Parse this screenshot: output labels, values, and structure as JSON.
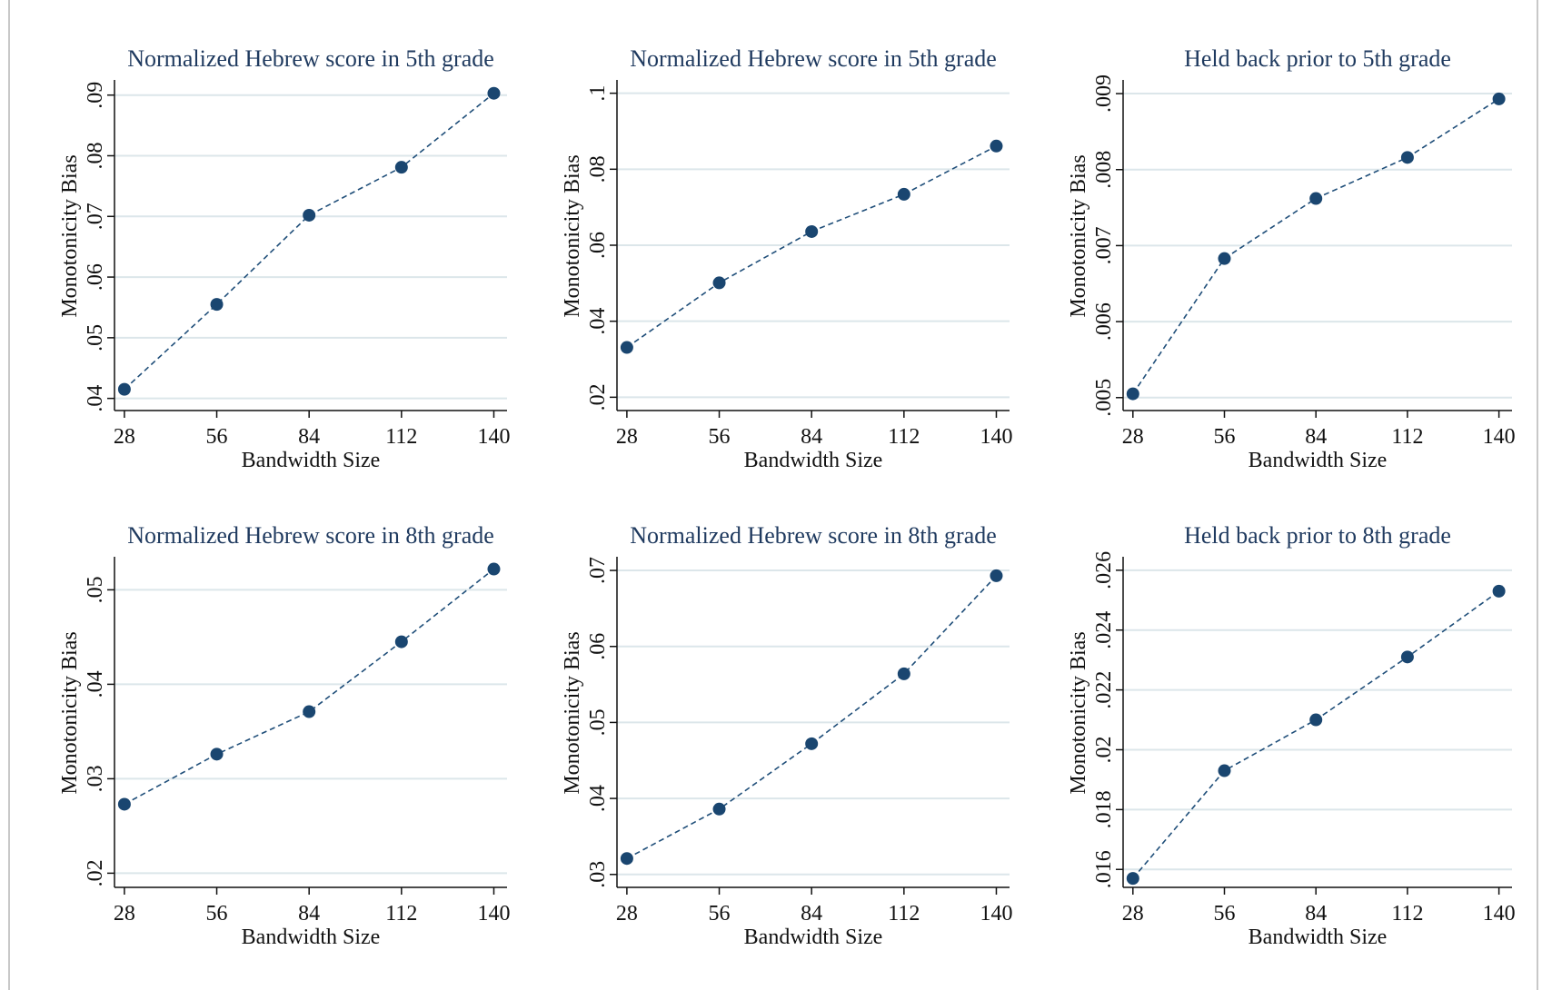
{
  "chart_data": [
    {
      "type": "line",
      "title": "Normalized Hebrew score in 5th grade",
      "xlabel": "Bandwidth Size",
      "ylabel": "Monotonicity Bias",
      "x": [
        28,
        56,
        84,
        112,
        140
      ],
      "xticks": [
        "28",
        "56",
        "84",
        "112",
        "140"
      ],
      "xlim": [
        25,
        144
      ],
      "yticks": [
        0.04,
        0.05,
        0.06,
        0.07,
        0.08,
        0.09
      ],
      "yticklabels": [
        ".04",
        ".05",
        ".06",
        ".07",
        ".08",
        ".09"
      ],
      "ylim": [
        0.038,
        0.0925
      ],
      "grid": true,
      "series": [
        {
          "values": [
            0.0415,
            0.0555,
            0.0702,
            0.0781,
            0.0903
          ]
        }
      ]
    },
    {
      "type": "line",
      "title": "Normalized Hebrew score in 5th grade",
      "xlabel": "Bandwidth Size",
      "ylabel": "Monotonicity Bias",
      "x": [
        28,
        56,
        84,
        112,
        140
      ],
      "xticks": [
        "28",
        "56",
        "84",
        "112",
        "140"
      ],
      "xlim": [
        25,
        144
      ],
      "yticks": [
        0.02,
        0.04,
        0.06,
        0.08,
        0.1
      ],
      "yticklabels": [
        ".02",
        ".04",
        ".06",
        ".08",
        ".1"
      ],
      "ylim": [
        0.0165,
        0.1035
      ],
      "grid": true,
      "series": [
        {
          "values": [
            0.0331,
            0.0501,
            0.0636,
            0.0734,
            0.0861
          ]
        }
      ]
    },
    {
      "type": "line",
      "title": "Held back prior to 5th grade",
      "xlabel": "Bandwidth Size",
      "ylabel": "Monotonicity Bias",
      "x": [
        28,
        56,
        84,
        112,
        140
      ],
      "xticks": [
        "28",
        "56",
        "84",
        "112",
        "140"
      ],
      "xlim": [
        25,
        144
      ],
      "yticks": [
        0.005,
        0.006,
        0.007,
        0.008,
        0.009
      ],
      "yticklabels": [
        ".005",
        ".006",
        ".007",
        ".008",
        ".009"
      ],
      "ylim": [
        0.00483,
        0.00918
      ],
      "grid": true,
      "series": [
        {
          "values": [
            0.00505,
            0.00683,
            0.00762,
            0.00816,
            0.00893
          ]
        }
      ]
    },
    {
      "type": "line",
      "title": "Normalized Hebrew score in 8th grade",
      "xlabel": "Bandwidth Size",
      "ylabel": "Monotonicity Bias",
      "x": [
        28,
        56,
        84,
        112,
        140
      ],
      "xticks": [
        "28",
        "56",
        "84",
        "112",
        "140"
      ],
      "xlim": [
        25,
        144
      ],
      "yticks": [
        0.02,
        0.03,
        0.04,
        0.05
      ],
      "yticklabels": [
        ".02",
        ".03",
        ".04",
        ".05"
      ],
      "ylim": [
        0.0185,
        0.0535
      ],
      "grid": true,
      "series": [
        {
          "values": [
            0.0273,
            0.0326,
            0.0371,
            0.0445,
            0.0522
          ]
        }
      ]
    },
    {
      "type": "line",
      "title": "Normalized Hebrew score in 8th grade",
      "xlabel": "Bandwidth Size",
      "ylabel": "Monotonicity Bias",
      "x": [
        28,
        56,
        84,
        112,
        140
      ],
      "xticks": [
        "28",
        "56",
        "84",
        "112",
        "140"
      ],
      "xlim": [
        25,
        144
      ],
      "yticks": [
        0.03,
        0.04,
        0.05,
        0.06,
        0.07
      ],
      "yticklabels": [
        ".03",
        ".04",
        ".05",
        ".06",
        ".07"
      ],
      "ylim": [
        0.0283,
        0.0718
      ],
      "grid": true,
      "series": [
        {
          "values": [
            0.0321,
            0.0386,
            0.0472,
            0.0564,
            0.0693
          ]
        }
      ]
    },
    {
      "type": "line",
      "title": "Held back prior to 8th grade",
      "xlabel": "Bandwidth Size",
      "ylabel": "Monotonicity Bias",
      "x": [
        28,
        56,
        84,
        112,
        140
      ],
      "xticks": [
        "28",
        "56",
        "84",
        "112",
        "140"
      ],
      "xlim": [
        25,
        144
      ],
      "yticks": [
        0.016,
        0.018,
        0.02,
        0.022,
        0.024,
        0.026
      ],
      "yticklabels": [
        ".016",
        ".018",
        ".02",
        ".022",
        ".024",
        ".026"
      ],
      "ylim": [
        0.0154,
        0.02645
      ],
      "grid": true,
      "series": [
        {
          "values": [
            0.0157,
            0.0193,
            0.021,
            0.0231,
            0.0253
          ]
        }
      ]
    }
  ]
}
